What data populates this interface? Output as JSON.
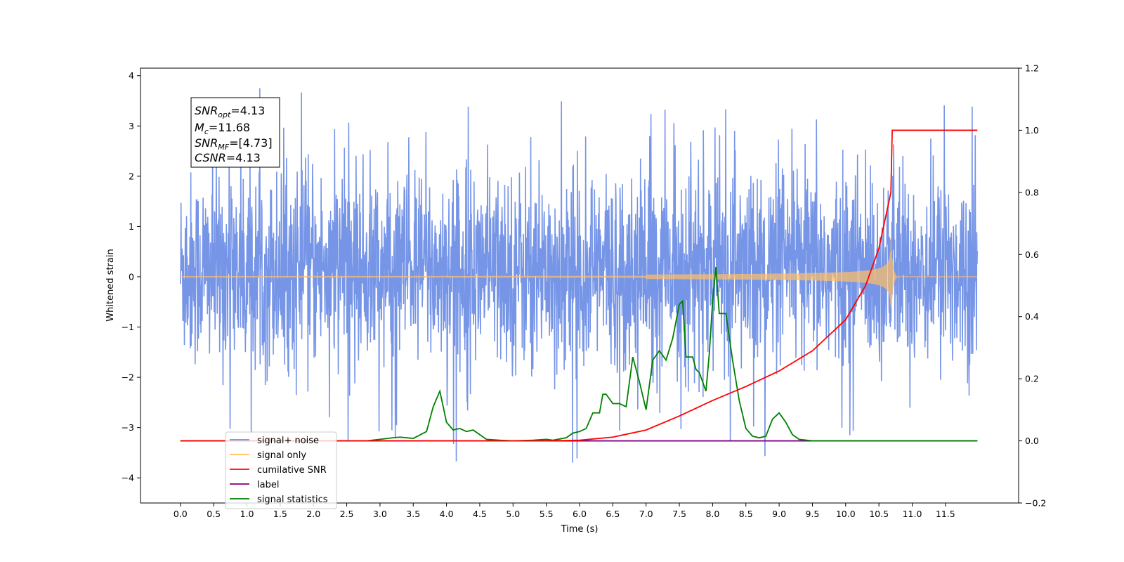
{
  "chart_data": {
    "type": "line",
    "title": "",
    "xlabel": "Time (s)",
    "ylabel": "Whitened strain",
    "ylabel_right": "",
    "xlim": [
      -0.6,
      12.6
    ],
    "ylim_left": [
      -4.5,
      4.15
    ],
    "ylim_right": [
      -0.2,
      1.2
    ],
    "x_ticks": [
      "0.0",
      "0.5",
      "1.0",
      "1.5",
      "2.0",
      "2.5",
      "3.0",
      "3.5",
      "4.0",
      "4.5",
      "5.0",
      "5.5",
      "6.0",
      "6.5",
      "7.0",
      "7.5",
      "8.0",
      "8.5",
      "9.0",
      "9.5",
      "10.0",
      "10.5",
      "11.0",
      "11.5"
    ],
    "y_ticks_left": [
      "4",
      "3",
      "2",
      "1",
      "0",
      "−1",
      "−2",
      "−3",
      "−4"
    ],
    "y_ticks_right": [
      "1.2",
      "1.0",
      "0.8",
      "0.6",
      "0.4",
      "0.2",
      "0.0",
      "−0.2"
    ],
    "grid": false,
    "legend_position": "lower-left",
    "annotation": {
      "line1": {
        "sym": "SNR",
        "sub": "opt",
        "val": "=4.13"
      },
      "line2": {
        "sym": "M",
        "sub": "c",
        "val": "=11.68"
      },
      "line3": {
        "sym": "SNR",
        "sub": "MF",
        "val": "=[4.73]"
      },
      "line4": {
        "sym": "CSNR",
        "sub": "",
        "val": "=4.13"
      }
    },
    "series": [
      {
        "name": "signal+ noise",
        "axis": "left",
        "color": "#6f8fe6",
        "description": "noise band, approx uniform",
        "y_range_typical": [
          -1.9,
          2.2
        ],
        "y_max": 3.75,
        "y_min": -4.1
      },
      {
        "name": "signal only",
        "axis": "left",
        "color": "#ffbf66",
        "description": "chirp growing until merger near t=10.68 s",
        "peak_amplitude": 0.85,
        "merger_time": 10.68
      },
      {
        "name": "cumilative SNR",
        "axis": "right",
        "color": "#ff0000",
        "x": [
          0.0,
          5.5,
          6.0,
          6.5,
          7.0,
          7.5,
          8.0,
          8.5,
          9.0,
          9.5,
          10.0,
          10.3,
          10.5,
          10.68,
          10.7,
          11.0,
          11.5,
          11.98
        ],
        "y": [
          0.0,
          0.0,
          0.002,
          0.012,
          0.035,
          0.08,
          0.13,
          0.175,
          0.225,
          0.29,
          0.39,
          0.5,
          0.62,
          0.8,
          1.0,
          1.0,
          1.0,
          1.0
        ]
      },
      {
        "name": "label",
        "axis": "right",
        "color": "#800080",
        "x": [
          0.0,
          11.98
        ],
        "y": [
          0.0,
          0.0
        ]
      },
      {
        "name": "signal statistics",
        "axis": "right",
        "color": "#008000",
        "x": [
          0.0,
          2.8,
          3.0,
          3.2,
          3.3,
          3.5,
          3.7,
          3.8,
          3.9,
          4.0,
          4.1,
          4.2,
          4.3,
          4.4,
          4.5,
          4.6,
          4.8,
          5.0,
          5.3,
          5.5,
          5.6,
          5.8,
          5.9,
          6.0,
          6.1,
          6.2,
          6.3,
          6.35,
          6.4,
          6.5,
          6.6,
          6.7,
          6.8,
          6.9,
          7.0,
          7.1,
          7.2,
          7.3,
          7.4,
          7.5,
          7.55,
          7.6,
          7.7,
          7.75,
          7.8,
          7.9,
          7.95,
          8.0,
          8.05,
          8.1,
          8.15,
          8.2,
          8.3,
          8.4,
          8.5,
          8.6,
          8.7,
          8.8,
          8.9,
          9.0,
          9.1,
          9.2,
          9.3,
          9.5,
          10.0,
          11.0,
          11.98
        ],
        "y": [
          0.0,
          0.0,
          0.005,
          0.01,
          0.012,
          0.008,
          0.03,
          0.11,
          0.16,
          0.06,
          0.035,
          0.04,
          0.03,
          0.035,
          0.02,
          0.005,
          0.002,
          0.0,
          0.002,
          0.005,
          0.002,
          0.01,
          0.025,
          0.03,
          0.04,
          0.09,
          0.09,
          0.15,
          0.15,
          0.12,
          0.12,
          0.11,
          0.27,
          0.19,
          0.1,
          0.26,
          0.29,
          0.26,
          0.33,
          0.44,
          0.45,
          0.27,
          0.27,
          0.23,
          0.22,
          0.16,
          0.28,
          0.45,
          0.56,
          0.41,
          0.41,
          0.41,
          0.26,
          0.13,
          0.04,
          0.015,
          0.01,
          0.015,
          0.07,
          0.09,
          0.06,
          0.02,
          0.005,
          0.0,
          0.0,
          0.0,
          0.0
        ]
      }
    ]
  }
}
